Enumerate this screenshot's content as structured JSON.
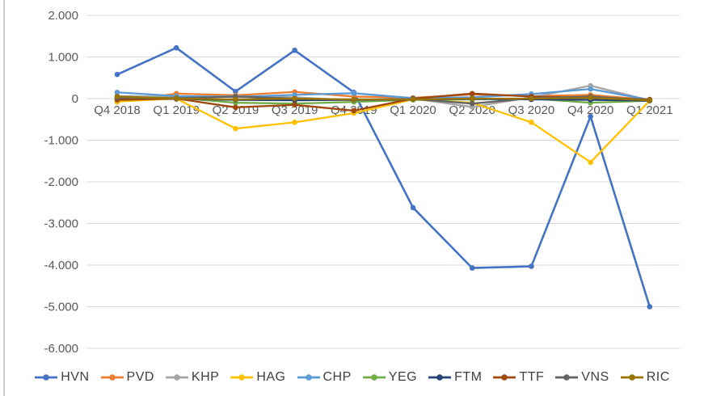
{
  "chart_data": {
    "type": "line",
    "categories": [
      "Q4 2018",
      "Q1 2019",
      "Q2 2019",
      "Q3 2019",
      "Q4 2019",
      "Q1 2020",
      "Q2 2020",
      "Q3 2020",
      "Q4 2020",
      "Q1 2021"
    ],
    "series": [
      {
        "name": "HVN",
        "color": "#4472C4",
        "values": [
          580,
          1220,
          170,
          1160,
          150,
          -2620,
          -4070,
          -4030,
          -430,
          -5000
        ]
      },
      {
        "name": "PVD",
        "color": "#ED7D31",
        "values": [
          -80,
          120,
          80,
          160,
          50,
          20,
          100,
          60,
          90,
          -30
        ]
      },
      {
        "name": "KHP",
        "color": "#A5A5A5",
        "values": [
          60,
          40,
          60,
          30,
          -40,
          0,
          -200,
          30,
          310,
          -40
        ]
      },
      {
        "name": "HAG",
        "color": "#FFC000",
        "values": [
          -70,
          0,
          -720,
          -570,
          -350,
          -20,
          -100,
          -570,
          -1530,
          -50
        ]
      },
      {
        "name": "CHP",
        "color": "#5B9BD5",
        "values": [
          150,
          60,
          40,
          90,
          130,
          10,
          30,
          110,
          230,
          -30
        ]
      },
      {
        "name": "YEG",
        "color": "#70AD47",
        "values": [
          30,
          20,
          -100,
          -120,
          -80,
          -30,
          -20,
          0,
          -100,
          -50
        ]
      },
      {
        "name": "FTM",
        "color": "#264478",
        "values": [
          0,
          -10,
          -30,
          -40,
          -30,
          -20,
          -10,
          -20,
          -30,
          -50
        ]
      },
      {
        "name": "TTF",
        "color": "#9E480E",
        "values": [
          -30,
          0,
          -210,
          -150,
          -290,
          0,
          120,
          50,
          20,
          -20
        ]
      },
      {
        "name": "VNS",
        "color": "#636363",
        "values": [
          20,
          10,
          50,
          0,
          -30,
          -10,
          -120,
          10,
          50,
          -40
        ]
      },
      {
        "name": "RIC",
        "color": "#997300",
        "values": [
          50,
          0,
          -20,
          0,
          -20,
          -20,
          0,
          0,
          20,
          -40
        ]
      }
    ],
    "y_axis": {
      "tick_values": [
        2000,
        1000,
        0,
        -1000,
        -2000,
        -3000,
        -4000,
        -5000,
        -6000
      ],
      "tick_labels": [
        "2.000",
        "1.000",
        "0",
        "-1.000",
        "-2.000",
        "-3.000",
        "-4.000",
        "-5.000",
        "-6.000"
      ],
      "min": -6000,
      "max": 2000
    },
    "xlabel": "",
    "ylabel": "",
    "title": "",
    "grid": true,
    "legend_position": "bottom",
    "colors": {
      "gridline": "#D9D9D9",
      "axis_label": "#595959",
      "legend_text": "#404040",
      "background": "#FFFFFF",
      "window_edge": "#CCCCCC"
    }
  }
}
